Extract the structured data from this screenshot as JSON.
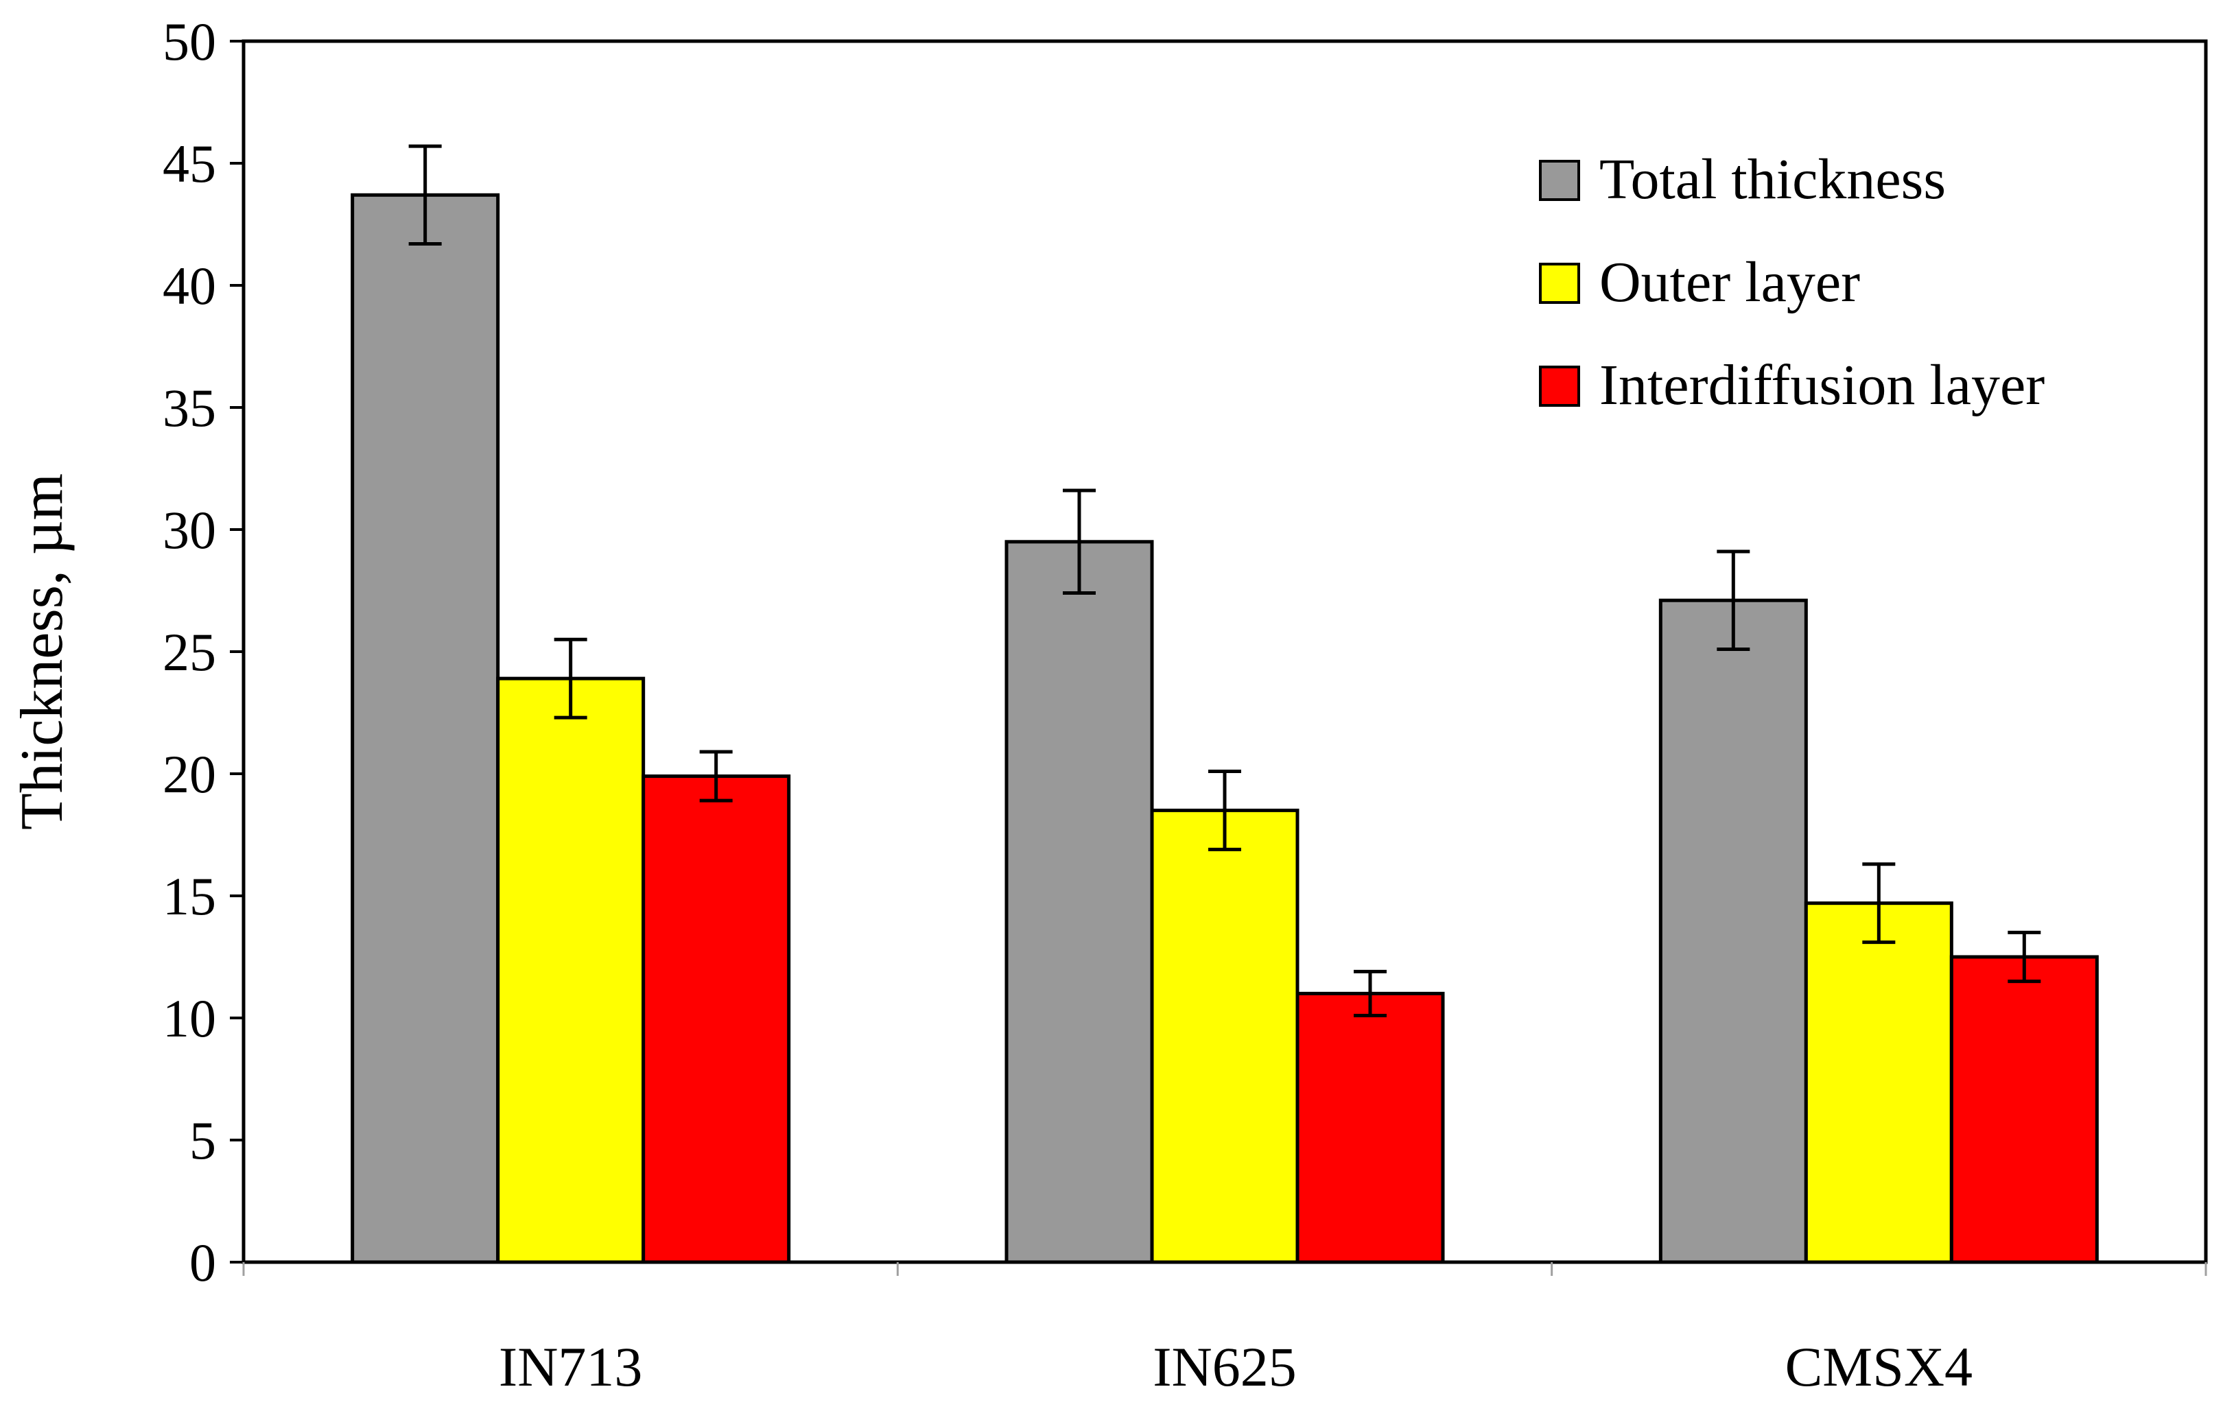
{
  "chart_data": {
    "type": "bar",
    "title": "",
    "xlabel": "",
    "ylabel": "Thickness, µm",
    "ylim": [
      0,
      50
    ],
    "yticks": [
      0,
      5,
      10,
      15,
      20,
      25,
      30,
      35,
      40,
      45,
      50
    ],
    "grid": false,
    "legend_position": "top-right",
    "categories": [
      "IN713",
      "IN625",
      "CMSX4"
    ],
    "series": [
      {
        "name": "Total thickness",
        "color": "#999999",
        "values": [
          43.7,
          29.5,
          27.1
        ],
        "errors": [
          2.0,
          2.1,
          2.0
        ]
      },
      {
        "name": "Outer layer",
        "color": "#ffff00",
        "values": [
          23.9,
          18.5,
          14.7
        ],
        "errors": [
          1.6,
          1.6,
          1.6
        ]
      },
      {
        "name": "Interdiffusion layer",
        "color": "#ff0000",
        "values": [
          19.9,
          11.0,
          12.5
        ],
        "errors": [
          1.0,
          0.9,
          1.0
        ]
      }
    ]
  }
}
